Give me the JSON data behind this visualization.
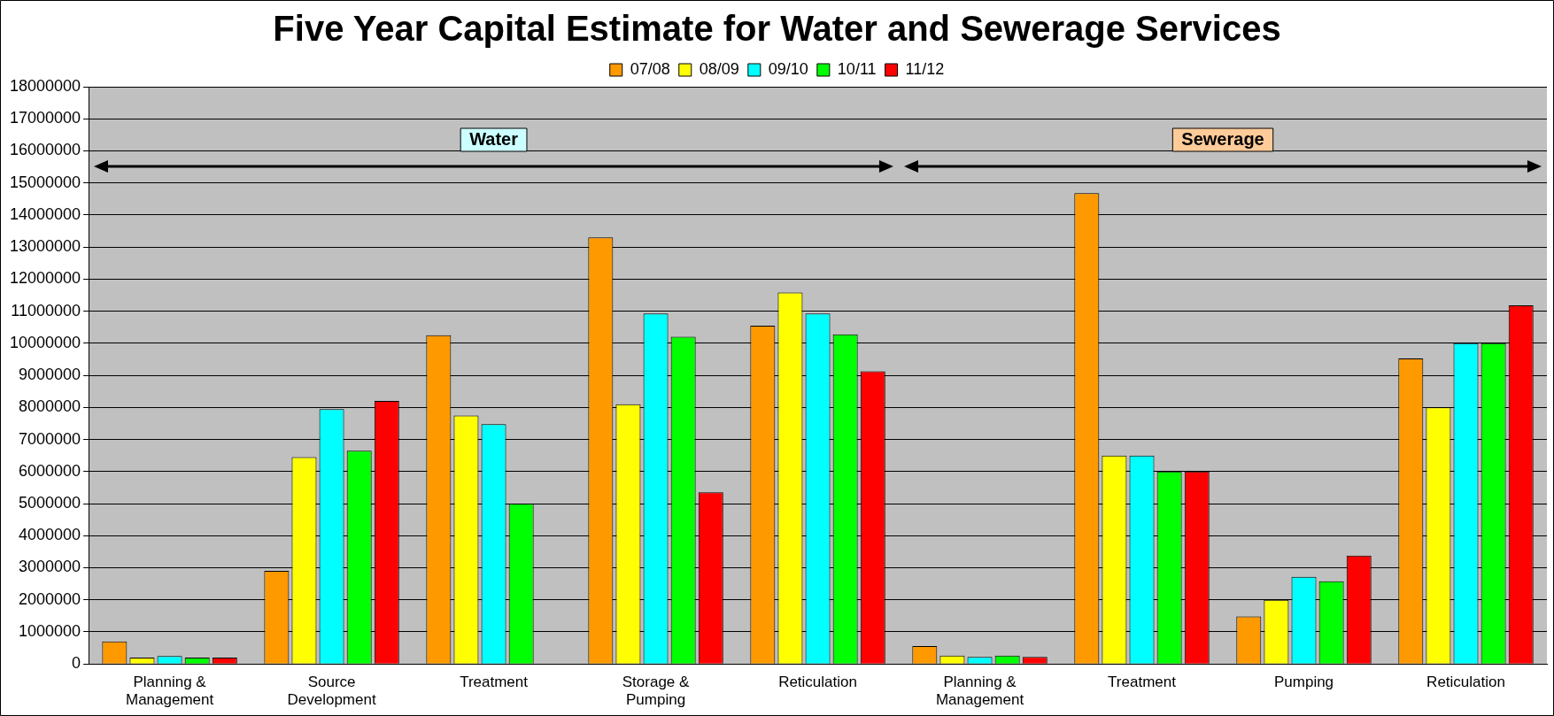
{
  "chart_data": {
    "type": "bar",
    "title": "Five Year Capital Estimate for Water and Sewerage Services",
    "categories": [
      "Planning & Management",
      "Source Development",
      "Treatment",
      "Storage & Pumping",
      "Reticulation",
      "Planning & Management",
      "Treatment",
      "Pumping",
      "Reticulation"
    ],
    "series": [
      {
        "name": "07/08",
        "color": "#ff9900",
        "values": [
          700000,
          2900000,
          10250000,
          13300000,
          10550000,
          560000,
          14680000,
          1480000,
          9530000
        ]
      },
      {
        "name": "08/09",
        "color": "#ffff00",
        "values": [
          200000,
          6450000,
          7750000,
          8100000,
          11580000,
          260000,
          6500000,
          2000000,
          8000000
        ]
      },
      {
        "name": "09/10",
        "color": "#00ffff",
        "values": [
          250000,
          7950000,
          7480000,
          10930000,
          10930000,
          220000,
          6500000,
          2720000,
          10000000
        ]
      },
      {
        "name": "10/11",
        "color": "#00ff00",
        "values": [
          200000,
          6650000,
          5000000,
          10200000,
          10280000,
          260000,
          6000000,
          2580000,
          10000000
        ]
      },
      {
        "name": "11/12",
        "color": "#ff0000",
        "values": [
          200000,
          8200000,
          0,
          5350000,
          9130000,
          220000,
          6000000,
          3380000,
          11180000
        ]
      }
    ],
    "ylim": [
      0,
      18000000
    ],
    "yticks": [
      0,
      1000000,
      2000000,
      3000000,
      4000000,
      5000000,
      6000000,
      7000000,
      8000000,
      9000000,
      10000000,
      11000000,
      12000000,
      13000000,
      14000000,
      15000000,
      16000000,
      17000000,
      18000000
    ],
    "grid": "y",
    "legend": "top",
    "annotations": [
      "Water",
      "Sewerage"
    ]
  }
}
